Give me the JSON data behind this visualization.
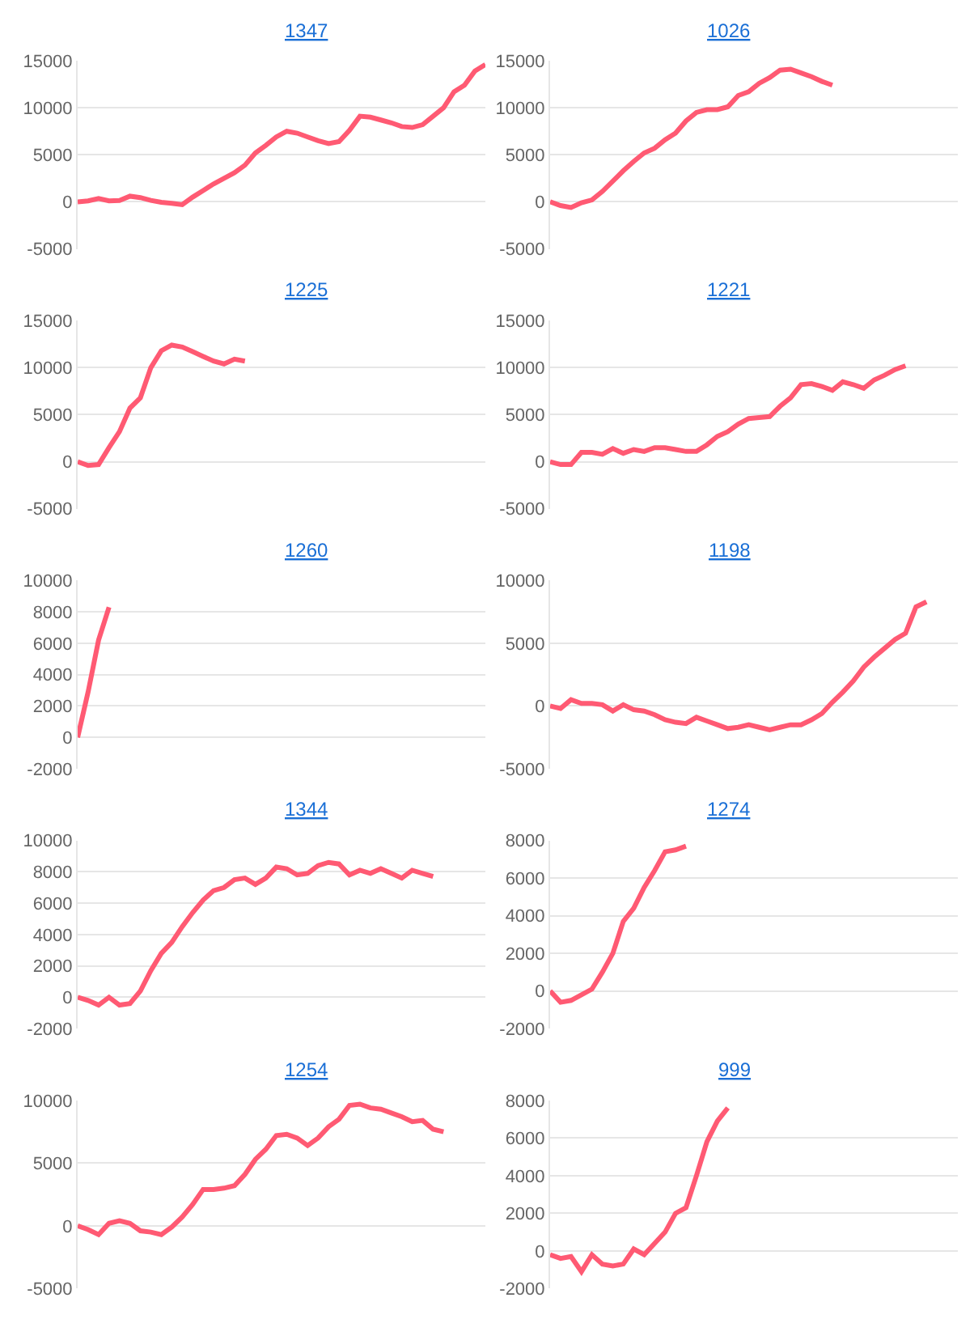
{
  "chart_data": [
    {
      "type": "line",
      "title": "1347",
      "color": "#ff5a73",
      "ylim": [
        -5000,
        15000
      ],
      "yticks": [
        -5000,
        0,
        5000,
        10000,
        15000
      ],
      "grid": "y",
      "tick_labels": "y",
      "marker": "none",
      "categories": [
        null,
        null,
        null,
        null,
        null,
        null,
        null,
        null,
        null,
        null,
        null,
        null,
        null,
        null,
        null,
        null,
        null,
        null,
        null,
        null,
        null,
        null,
        null,
        null,
        null,
        null,
        null,
        null,
        null,
        null,
        null,
        null,
        null,
        null,
        null,
        null,
        null,
        null,
        null,
        null
      ],
      "values": [
        0,
        100,
        350,
        100,
        150,
        600,
        450,
        150,
        -50,
        -150,
        -300,
        500,
        1200,
        1900,
        2500,
        3100,
        3900,
        5200,
        6000,
        6900,
        7500,
        7300,
        6900,
        6500,
        6200,
        6400,
        7600,
        9100,
        9000,
        8700,
        8400,
        8000,
        7900,
        8200,
        9100,
        10000,
        11700,
        12400,
        13900,
        14600
      ]
    },
    {
      "type": "line",
      "title": "1026",
      "color": "#ff5a73",
      "ylim": [
        -5000,
        15000
      ],
      "yticks": [
        -5000,
        0,
        5000,
        10000,
        15000
      ],
      "grid": "y",
      "tick_labels": "y",
      "marker": "none",
      "categories": [
        null,
        null,
        null,
        null,
        null,
        null,
        null,
        null,
        null,
        null,
        null,
        null,
        null,
        null,
        null,
        null,
        null,
        null,
        null,
        null,
        null,
        null,
        null,
        null,
        null,
        null,
        null,
        null,
        null,
        null,
        null,
        null,
        null,
        null,
        null,
        null,
        null,
        null,
        null,
        null
      ],
      "values": [
        0,
        -400,
        -600,
        -100,
        200,
        1100,
        2200,
        3300,
        4300,
        5200,
        5700,
        6600,
        7300,
        8600,
        9500,
        9800,
        9800,
        10100,
        11300,
        11700,
        12600,
        13200,
        14000,
        14100,
        13700,
        13300,
        12800,
        12400,
        null,
        null,
        null,
        null,
        null,
        null,
        null,
        null,
        null,
        null,
        null,
        null
      ]
    },
    {
      "type": "line",
      "title": "1225",
      "color": "#ff5a73",
      "ylim": [
        -5000,
        15000
      ],
      "yticks": [
        -5000,
        0,
        5000,
        10000,
        15000
      ],
      "grid": "y",
      "tick_labels": "y",
      "marker": "none",
      "categories": [
        null,
        null,
        null,
        null,
        null,
        null,
        null,
        null,
        null,
        null,
        null,
        null,
        null,
        null,
        null,
        null,
        null,
        null,
        null,
        null,
        null,
        null,
        null,
        null,
        null,
        null,
        null,
        null,
        null,
        null,
        null,
        null,
        null,
        null,
        null,
        null,
        null,
        null,
        null,
        null
      ],
      "values": [
        0,
        -400,
        -300,
        1500,
        3200,
        5700,
        6800,
        10000,
        11800,
        12400,
        12200,
        11700,
        11200,
        10700,
        10400,
        10900,
        10700,
        null,
        null,
        null,
        null,
        null,
        null,
        null,
        null,
        null,
        null,
        null,
        null,
        null,
        null,
        null,
        null,
        null,
        null,
        null,
        null,
        null,
        null,
        null
      ]
    },
    {
      "type": "line",
      "title": "1221",
      "color": "#ff5a73",
      "ylim": [
        -5000,
        15000
      ],
      "yticks": [
        -5000,
        0,
        5000,
        10000,
        15000
      ],
      "grid": "y",
      "tick_labels": "y",
      "marker": "none",
      "categories": [
        null,
        null,
        null,
        null,
        null,
        null,
        null,
        null,
        null,
        null,
        null,
        null,
        null,
        null,
        null,
        null,
        null,
        null,
        null,
        null,
        null,
        null,
        null,
        null,
        null,
        null,
        null,
        null,
        null,
        null,
        null,
        null,
        null,
        null,
        null,
        null,
        null,
        null,
        null,
        null
      ],
      "values": [
        0,
        -300,
        -300,
        1000,
        1000,
        800,
        1400,
        900,
        1300,
        1100,
        1500,
        1500,
        1300,
        1100,
        1100,
        1800,
        2700,
        3200,
        4000,
        4600,
        4700,
        4800,
        5900,
        6800,
        8200,
        8300,
        8000,
        7600,
        8500,
        8200,
        7800,
        8700,
        9200,
        9800,
        10200,
        null,
        null,
        null,
        null,
        null
      ]
    },
    {
      "type": "line",
      "title": "1260",
      "color": "#ff5a73",
      "ylim": [
        -2000,
        10000
      ],
      "yticks": [
        -2000,
        0,
        2000,
        4000,
        6000,
        8000,
        10000
      ],
      "grid": "y",
      "tick_labels": "y",
      "marker": "none",
      "categories": [
        null,
        null,
        null,
        null,
        null,
        null,
        null,
        null,
        null,
        null,
        null,
        null,
        null,
        null,
        null,
        null,
        null,
        null,
        null,
        null,
        null,
        null,
        null,
        null,
        null,
        null,
        null,
        null,
        null,
        null,
        null,
        null,
        null,
        null,
        null,
        null,
        null,
        null,
        null,
        null
      ],
      "values": [
        0,
        2900,
        6200,
        8300,
        null,
        null,
        null,
        null,
        null,
        null,
        null,
        null,
        null,
        null,
        null,
        null,
        null,
        null,
        null,
        null,
        null,
        null,
        null,
        null,
        null,
        null,
        null,
        null,
        null,
        null,
        null,
        null,
        null,
        null,
        null,
        null,
        null,
        null,
        null,
        null
      ]
    },
    {
      "type": "line",
      "title": "1198",
      "color": "#ff5a73",
      "ylim": [
        -5000,
        10000
      ],
      "yticks": [
        -5000,
        0,
        5000,
        10000
      ],
      "grid": "y",
      "tick_labels": "y",
      "marker": "none",
      "categories": [
        null,
        null,
        null,
        null,
        null,
        null,
        null,
        null,
        null,
        null,
        null,
        null,
        null,
        null,
        null,
        null,
        null,
        null,
        null,
        null,
        null,
        null,
        null,
        null,
        null,
        null,
        null,
        null,
        null,
        null,
        null,
        null,
        null,
        null,
        null,
        null,
        null,
        null,
        null,
        null
      ],
      "values": [
        0,
        -200,
        500,
        200,
        200,
        100,
        -400,
        100,
        -300,
        -400,
        -700,
        -1100,
        -1300,
        -1400,
        -900,
        -1200,
        -1500,
        -1800,
        -1700,
        -1500,
        -1700,
        -1900,
        -1700,
        -1500,
        -1500,
        -1100,
        -600,
        300,
        1100,
        2000,
        3100,
        3900,
        4600,
        5300,
        5800,
        7900,
        8300,
        null,
        null,
        null
      ]
    },
    {
      "type": "line",
      "title": "1344",
      "color": "#ff5a73",
      "ylim": [
        -2000,
        10000
      ],
      "yticks": [
        -2000,
        0,
        2000,
        4000,
        6000,
        8000,
        10000
      ],
      "grid": "y",
      "tick_labels": "y",
      "marker": "none",
      "categories": [
        null,
        null,
        null,
        null,
        null,
        null,
        null,
        null,
        null,
        null,
        null,
        null,
        null,
        null,
        null,
        null,
        null,
        null,
        null,
        null,
        null,
        null,
        null,
        null,
        null,
        null,
        null,
        null,
        null,
        null,
        null,
        null,
        null,
        null,
        null,
        null,
        null,
        null,
        null,
        null
      ],
      "values": [
        0,
        -200,
        -500,
        0,
        -500,
        -400,
        400,
        1700,
        2800,
        3500,
        4500,
        5400,
        6200,
        6800,
        7000,
        7500,
        7600,
        7200,
        7600,
        8300,
        8200,
        7800,
        7900,
        8400,
        8600,
        8500,
        7800,
        8100,
        7900,
        8200,
        7900,
        7600,
        8100,
        7900,
        7700,
        null,
        null,
        null,
        null,
        null
      ]
    },
    {
      "type": "line",
      "title": "1274",
      "color": "#ff5a73",
      "ylim": [
        -2000,
        8000
      ],
      "yticks": [
        -2000,
        0,
        2000,
        4000,
        6000,
        8000
      ],
      "grid": "y",
      "tick_labels": "y",
      "marker": "none",
      "categories": [
        null,
        null,
        null,
        null,
        null,
        null,
        null,
        null,
        null,
        null,
        null,
        null,
        null,
        null,
        null,
        null,
        null,
        null,
        null,
        null,
        null,
        null,
        null,
        null,
        null,
        null,
        null,
        null,
        null,
        null,
        null,
        null,
        null,
        null,
        null,
        null,
        null,
        null,
        null,
        null
      ],
      "values": [
        0,
        -600,
        -500,
        -200,
        100,
        1000,
        2000,
        3700,
        4400,
        5500,
        6400,
        7400,
        7500,
        7700,
        null,
        null,
        null,
        null,
        null,
        null,
        null,
        null,
        null,
        null,
        null,
        null,
        null,
        null,
        null,
        null,
        null,
        null,
        null,
        null,
        null,
        null,
        null,
        null,
        null,
        null
      ]
    },
    {
      "type": "line",
      "title": "1254",
      "color": "#ff5a73",
      "ylim": [
        -5000,
        10000
      ],
      "yticks": [
        -5000,
        0,
        5000,
        10000
      ],
      "grid": "y",
      "tick_labels": "y",
      "marker": "none",
      "categories": [
        null,
        null,
        null,
        null,
        null,
        null,
        null,
        null,
        null,
        null,
        null,
        null,
        null,
        null,
        null,
        null,
        null,
        null,
        null,
        null,
        null,
        null,
        null,
        null,
        null,
        null,
        null,
        null,
        null,
        null,
        null,
        null,
        null,
        null,
        null,
        null,
        null,
        null,
        null,
        null
      ],
      "values": [
        0,
        -300,
        -700,
        200,
        400,
        200,
        -400,
        -500,
        -700,
        -100,
        700,
        1700,
        2900,
        2900,
        3000,
        3200,
        4100,
        5300,
        6100,
        7200,
        7300,
        7000,
        6400,
        7000,
        7900,
        8500,
        9600,
        9700,
        9400,
        9300,
        9000,
        8700,
        8300,
        8400,
        7700,
        7500,
        null,
        null,
        null,
        null
      ]
    },
    {
      "type": "line",
      "title": "999",
      "color": "#ff5a73",
      "ylim": [
        -2000,
        8000
      ],
      "yticks": [
        -2000,
        0,
        2000,
        4000,
        6000,
        8000
      ],
      "grid": "y",
      "tick_labels": "y",
      "marker": "none",
      "categories": [
        null,
        null,
        null,
        null,
        null,
        null,
        null,
        null,
        null,
        null,
        null,
        null,
        null,
        null,
        null,
        null,
        null,
        null,
        null,
        null,
        null,
        null,
        null,
        null,
        null,
        null,
        null,
        null,
        null,
        null,
        null,
        null,
        null,
        null,
        null,
        null,
        null,
        null,
        null,
        null
      ],
      "values": [
        -200,
        -400,
        -300,
        -1100,
        -200,
        -700,
        -800,
        -700,
        100,
        -200,
        400,
        1000,
        2000,
        2300,
        4000,
        5800,
        6900,
        7600,
        null,
        null,
        null,
        null,
        null,
        null,
        null,
        null,
        null,
        null,
        null,
        null,
        null,
        null,
        null,
        null,
        null,
        null,
        null,
        null,
        null,
        null
      ]
    }
  ]
}
